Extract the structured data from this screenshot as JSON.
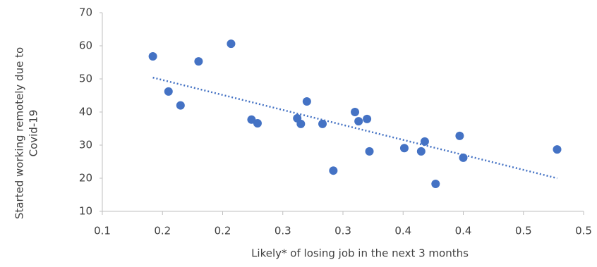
{
  "chart_data": {
    "type": "scatter",
    "x_label": "Likely* of losing job in the next 3 months",
    "y_label": [
      "Started working remotely due to",
      "Covid-19"
    ],
    "x": [
      0.142,
      0.207,
      0.18,
      0.155,
      0.165,
      0.224,
      0.229,
      0.27,
      0.262,
      0.265,
      0.283,
      0.31,
      0.313,
      0.32,
      0.322,
      0.292,
      0.351,
      0.365,
      0.368,
      0.377,
      0.397,
      0.4,
      0.478
    ],
    "values": [
      56.8,
      60.6,
      55.3,
      46.2,
      42.0,
      37.7,
      36.6,
      43.2,
      38.1,
      36.4,
      36.4,
      40.0,
      37.2,
      37.9,
      28.1,
      22.3,
      29.1,
      28.1,
      31.1,
      18.3,
      32.8,
      26.2,
      28.7
    ],
    "color": "#4472c4",
    "trendline": {
      "x": [
        0.142,
        0.478
      ],
      "values": [
        50.4,
        20.0
      ],
      "color": "#4472c4"
    },
    "xlim": [
      0.1,
      0.5
    ],
    "xticks": [
      0.1,
      {
        "value": 0.15,
        "label": "0.2"
      },
      0.2,
      {
        "value": 0.25,
        "label": "0.3"
      },
      0.3,
      {
        "value": 0.35,
        "label": "0.4"
      },
      0.4,
      {
        "value": 0.45,
        "label": "0.5"
      },
      0.5
    ],
    "ylim": [
      10,
      70
    ],
    "yticks": [
      10,
      20,
      30,
      40,
      50,
      60,
      70
    ],
    "grid": false
  }
}
